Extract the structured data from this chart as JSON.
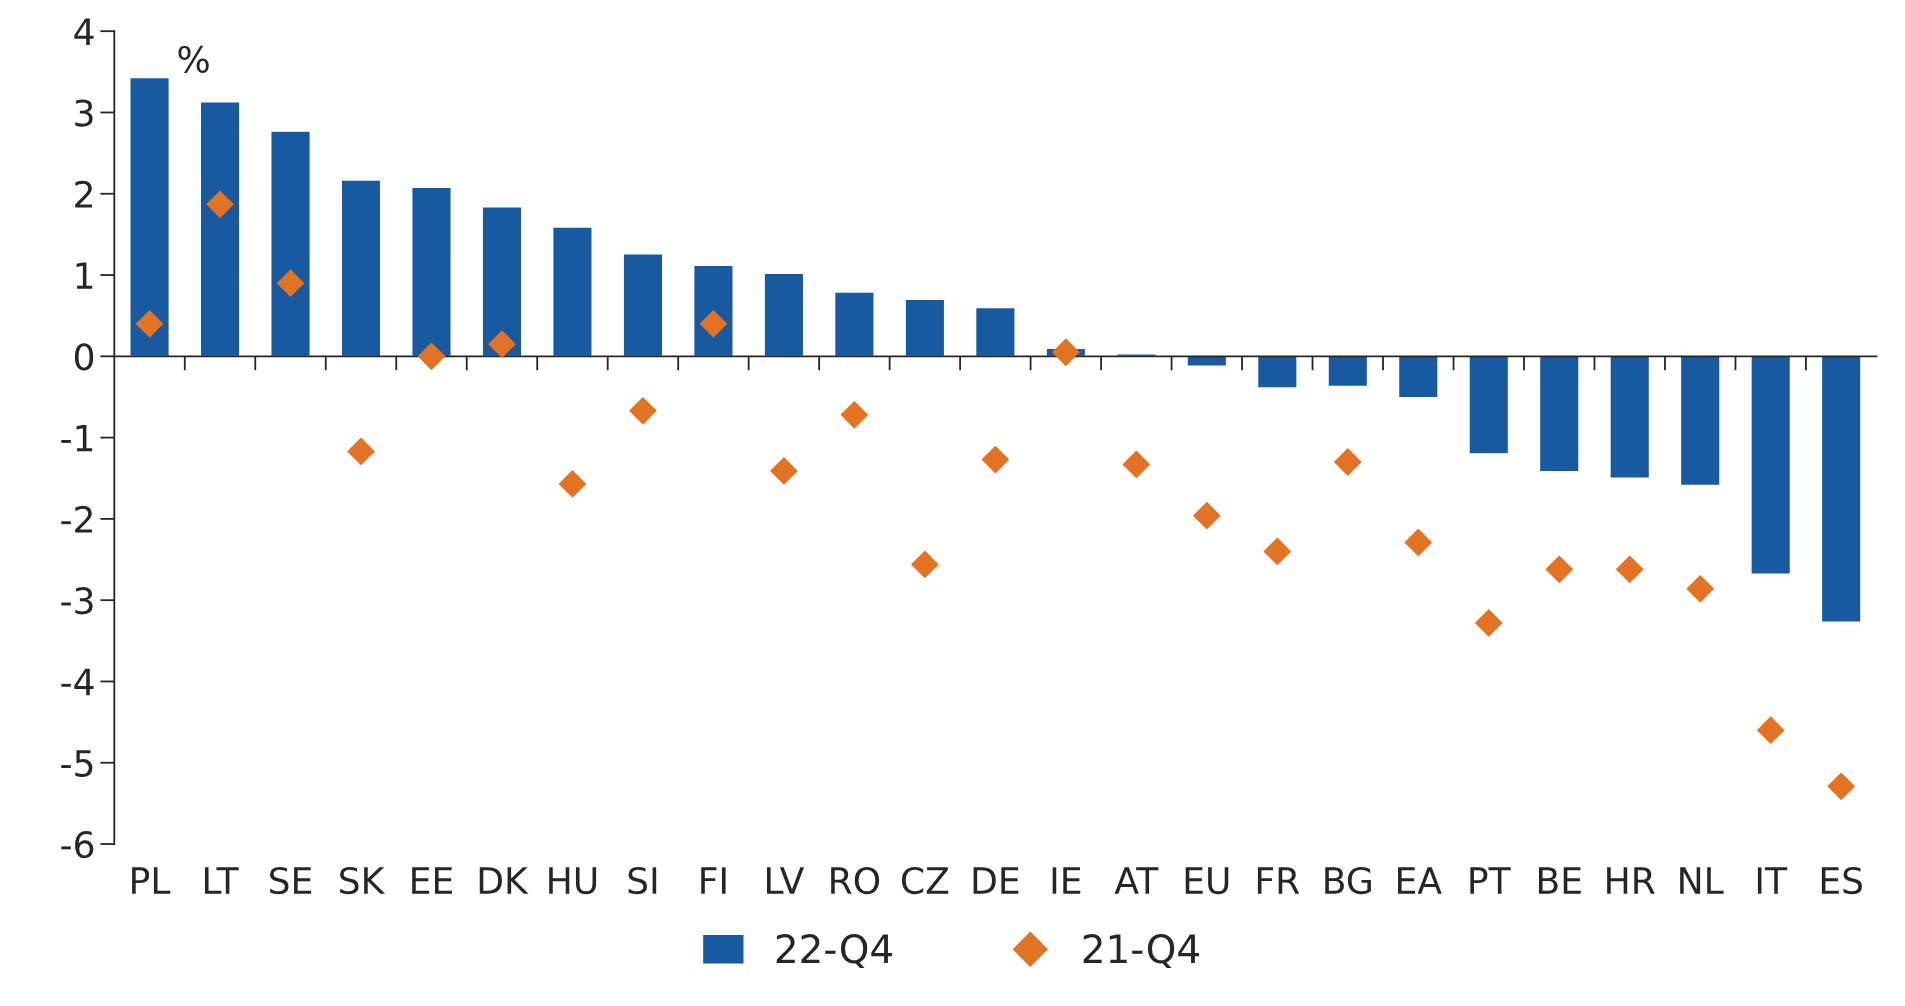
{
  "chart_data": {
    "type": "bar",
    "ylabel": "%",
    "categories": [
      "PL",
      "LT",
      "SE",
      "SK",
      "EE",
      "DK",
      "HU",
      "SI",
      "FI",
      "LV",
      "RO",
      "CZ",
      "DE",
      "IE",
      "AT",
      "EU",
      "FR",
      "BG",
      "EA",
      "PT",
      "BE",
      "HR",
      "NL",
      "IT",
      "ES"
    ],
    "series": [
      {
        "name": "22-Q4",
        "color": "#175aa0",
        "values": [
          3.43,
          3.13,
          2.77,
          2.17,
          2.08,
          1.84,
          1.59,
          1.26,
          1.12,
          1.02,
          0.79,
          0.7,
          0.6,
          0.1,
          0.03,
          -0.12,
          -0.39,
          -0.37,
          -0.51,
          -1.2,
          -1.42,
          -1.5,
          -1.59,
          -2.68,
          -3.27
        ]
      },
      {
        "name": "21-Q4",
        "type": "scatter",
        "color": "#e37222",
        "marker": "diamond",
        "values": [
          0.4,
          1.87,
          0.9,
          -1.17,
          0.0,
          0.15,
          -1.57,
          -0.67,
          0.4,
          -1.41,
          -0.72,
          -2.56,
          -1.27,
          0.05,
          -1.33,
          -1.96,
          -2.4,
          -1.3,
          -2.29,
          -3.28,
          -2.62,
          -2.62,
          -2.86,
          -4.6,
          -5.29
        ]
      }
    ],
    "ylim": [
      -6,
      4
    ],
    "yticks": [
      {
        "value": -6,
        "label": "-6"
      },
      {
        "value": -5,
        "label": "-5"
      },
      {
        "value": -4,
        "label": "-4"
      },
      {
        "value": -3,
        "label": "-3"
      },
      {
        "value": -2,
        "label": "-2"
      },
      {
        "value": -1,
        "label": "-1"
      },
      0,
      1,
      2,
      3,
      4
    ],
    "legend": "bottom"
  }
}
